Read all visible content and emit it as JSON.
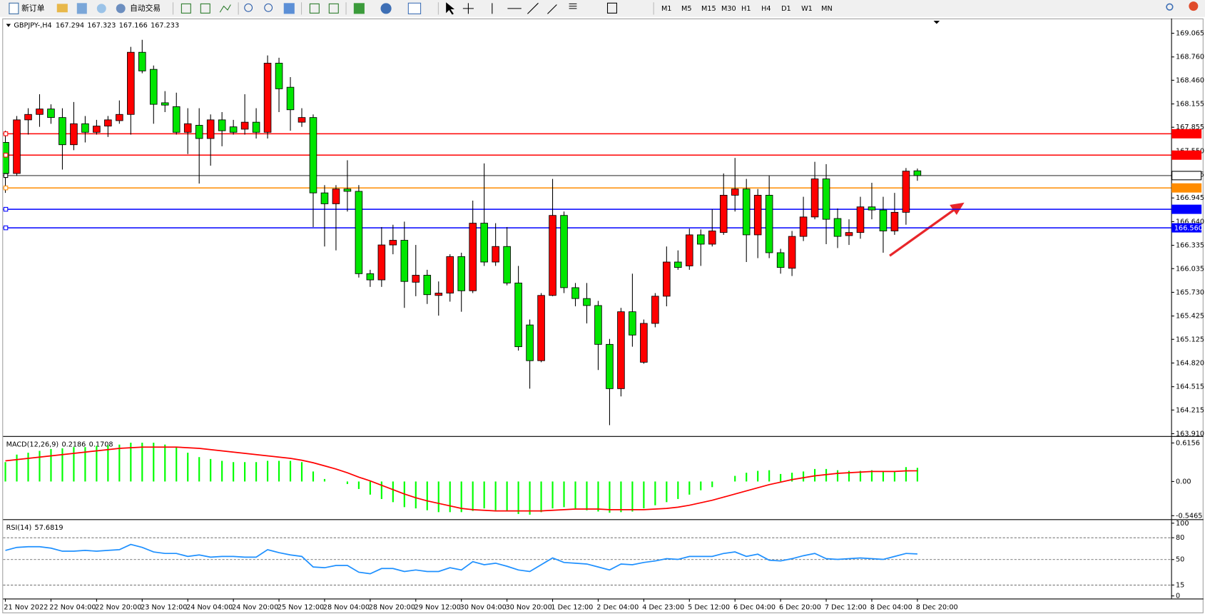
{
  "toolbar": {
    "new_order": "新订单",
    "auto_trading": "自动交易",
    "timeframes": [
      "M1",
      "M5",
      "M15",
      "M30",
      "H1",
      "H4",
      "D1",
      "W1",
      "MN"
    ]
  },
  "chart_data": [
    {
      "type": "candlestick",
      "symbol": "GBPJPY-,H4",
      "categories": [
        "21 Nov 2022",
        null,
        null,
        null,
        "22 Nov 04:00",
        null,
        null,
        null,
        "22 Nov 20:00",
        null,
        null,
        null,
        "23 Nov 12:00",
        null,
        null,
        null,
        "24 Nov 04:00",
        null,
        null,
        null,
        "24 Nov 20:00",
        null,
        null,
        null,
        "25 Nov 12:00",
        null,
        null,
        null,
        "28 Nov 04:00",
        null,
        null,
        null,
        "28 Nov 20:00",
        null,
        null,
        null,
        "29 Nov 12:00",
        null,
        null,
        null,
        "30 Nov 04:00",
        null,
        null,
        null,
        "30 Nov 20:00",
        null,
        null,
        null,
        "1 Dec 12:00",
        null,
        null,
        null,
        "2 Dec 04:00",
        null,
        null,
        null,
        "4 Dec 23:00",
        null,
        null,
        null,
        "5 Dec 12:00",
        null,
        null,
        null,
        "6 Dec 04:00",
        null,
        null,
        null,
        "6 Dec 20:00",
        null,
        null,
        null,
        "7 Dec 12:00",
        null,
        null,
        null,
        "8 Dec 04:00",
        null,
        null,
        null,
        "8 Dec 20:00"
      ],
      "open": [
        167.66,
        167.26,
        167.95,
        168.02,
        168.09,
        167.98,
        167.63,
        167.9,
        167.79,
        167.87,
        167.94,
        168.02,
        168.82,
        168.6,
        168.17,
        168.12,
        167.79,
        167.88,
        167.71,
        167.95,
        167.86,
        167.83,
        167.92,
        167.79,
        168.68,
        168.37,
        167.92,
        167.98,
        167.01,
        166.87,
        167.06,
        167.03,
        165.97,
        165.89,
        166.34,
        166.4,
        165.86,
        165.95,
        165.69,
        165.72,
        166.19,
        165.75,
        166.62,
        166.12,
        166.32,
        165.85,
        165.31,
        164.85,
        165.69,
        166.72,
        165.79,
        165.65,
        165.56,
        165.06,
        164.49,
        165.48,
        164.83,
        165.33,
        165.68,
        166.12,
        166.07,
        166.47,
        166.35,
        166.5,
        166.98,
        167.06,
        166.47,
        166.98,
        166.24,
        166.04,
        166.45,
        166.7,
        167.19,
        166.68,
        166.46,
        166.5,
        166.83,
        166.79,
        166.52,
        166.76,
        167.294
      ],
      "high": [
        167.81,
        168.0,
        168.1,
        168.28,
        168.15,
        168.1,
        168.18,
        168.0,
        167.95,
        168.0,
        168.2,
        168.89,
        168.98,
        168.65,
        168.32,
        168.3,
        168.1,
        168.1,
        168.02,
        168.05,
        167.95,
        168.28,
        168.1,
        168.78,
        168.75,
        168.5,
        168.1,
        168.02,
        167.11,
        167.11,
        167.43,
        167.11,
        166.02,
        166.57,
        166.6,
        166.64,
        166.34,
        166.02,
        165.87,
        166.22,
        166.24,
        166.91,
        167.39,
        166.62,
        166.57,
        166.07,
        165.38,
        165.72,
        167.19,
        166.77,
        165.85,
        165.85,
        165.62,
        165.13,
        165.53,
        165.97,
        165.38,
        165.72,
        166.32,
        166.27,
        166.55,
        166.54,
        166.8,
        167.26,
        167.46,
        167.19,
        167.06,
        167.23,
        166.29,
        166.52,
        166.96,
        167.41,
        167.38,
        166.81,
        166.67,
        166.96,
        167.14,
        166.96,
        167.01,
        167.33,
        167.323
      ],
      "low": [
        167.01,
        167.23,
        167.76,
        167.86,
        167.9,
        167.31,
        167.56,
        167.66,
        167.76,
        167.73,
        167.9,
        167.76,
        168.55,
        167.9,
        168.05,
        167.76,
        167.51,
        167.13,
        167.36,
        167.61,
        167.76,
        167.76,
        167.71,
        167.71,
        168.05,
        167.81,
        167.86,
        166.57,
        166.32,
        166.27,
        166.77,
        165.92,
        165.8,
        165.8,
        166.22,
        165.53,
        165.68,
        165.58,
        165.43,
        165.61,
        165.48,
        165.72,
        166.07,
        166.07,
        165.82,
        164.98,
        164.49,
        164.83,
        165.68,
        165.72,
        165.55,
        165.33,
        164.73,
        164.02,
        164.39,
        165.03,
        164.81,
        165.28,
        165.55,
        166.02,
        166.02,
        166.07,
        166.32,
        166.47,
        166.77,
        166.12,
        166.17,
        166.17,
        165.97,
        165.94,
        166.39,
        166.67,
        166.35,
        166.3,
        166.34,
        166.42,
        166.67,
        166.24,
        166.47,
        166.6,
        167.166
      ],
      "close": [
        167.26,
        167.95,
        168.02,
        168.09,
        167.98,
        167.63,
        167.9,
        167.79,
        167.87,
        167.95,
        168.02,
        168.82,
        168.58,
        168.15,
        168.14,
        167.79,
        167.9,
        167.71,
        167.95,
        167.81,
        167.79,
        167.92,
        167.79,
        168.68,
        168.35,
        168.08,
        167.98,
        167.01,
        166.87,
        167.06,
        167.03,
        165.97,
        165.89,
        166.34,
        166.4,
        165.87,
        165.95,
        165.7,
        165.72,
        166.19,
        165.75,
        166.62,
        166.12,
        166.32,
        165.85,
        165.03,
        164.85,
        165.69,
        166.72,
        165.79,
        165.65,
        165.56,
        165.06,
        164.49,
        165.48,
        165.18,
        165.33,
        165.68,
        166.12,
        166.05,
        166.47,
        166.35,
        166.52,
        166.98,
        167.06,
        166.47,
        166.98,
        166.24,
        166.05,
        166.45,
        166.7,
        167.19,
        166.67,
        166.45,
        166.5,
        166.83,
        166.79,
        166.52,
        166.76,
        167.29,
        167.233
      ],
      "up_color": "#ff0000",
      "down_color": "#00e600",
      "ylim": [
        163.88,
        169.245
      ],
      "yticks": [
        169.065,
        {
          "value": 168.76,
          "label": "168.760"
        },
        {
          "value": 168.46,
          "label": "168.460"
        },
        168.155,
        167.855,
        {
          "value": 167.55,
          "label": "167.550"
        },
        167.245,
        166.945,
        {
          "value": 166.64,
          "label": "166.640"
        },
        166.335,
        166.035,
        {
          "value": 165.73,
          "label": "165.730"
        },
        165.425,
        165.125,
        {
          "value": 164.82,
          "label": "164.820"
        },
        164.515,
        164.215,
        {
          "value": 163.91,
          "label": "163.910"
        }
      ],
      "hlines": [
        {
          "value": 167.771,
          "color": "#ff0000"
        },
        {
          "value": 167.496,
          "color": "#ff0000"
        },
        {
          "value": 167.233,
          "color": "#000000"
        },
        {
          "value": 167.074,
          "color": "#ff8c00"
        },
        {
          "value": 166.799,
          "color": "#0000ff"
        },
        {
          "value": 166.56,
          "label": "166.560",
          "color": "#0000ff"
        }
      ]
    },
    {
      "type": "macd",
      "title": "MACD(12,26,9)",
      "series": [
        {
          "kind": "bar",
          "color": "#00ff00",
          "values": [
            0.31,
            0.43,
            0.46,
            0.49,
            0.52,
            0.53,
            0.55,
            0.55,
            0.57,
            0.58,
            0.59,
            0.62,
            0.62,
            0.62,
            0.59,
            0.55,
            0.46,
            0.39,
            0.36,
            0.33,
            0.31,
            0.31,
            0.31,
            0.33,
            0.33,
            0.33,
            0.31,
            0.16,
            0.04,
            0,
            -0.04,
            -0.12,
            -0.21,
            -0.28,
            -0.33,
            -0.41,
            -0.43,
            -0.46,
            -0.49,
            -0.49,
            -0.49,
            -0.47,
            -0.43,
            -0.46,
            -0.47,
            -0.52,
            -0.53,
            -0.49,
            -0.43,
            -0.41,
            -0.43,
            -0.46,
            -0.48,
            -0.5,
            -0.49,
            -0.48,
            -0.43,
            -0.38,
            -0.33,
            -0.28,
            -0.21,
            -0.14,
            -0.09,
            0,
            0.09,
            0.14,
            0.17,
            0.18,
            0.12,
            0.14,
            0.16,
            0.2,
            0.2,
            0.18,
            0.17,
            0.17,
            0.18,
            0.16,
            0.17,
            0.23,
            0.2186
          ]
        },
        {
          "kind": "line",
          "color": "#ff0000",
          "values": [
            0.33,
            0.35,
            0.37,
            0.39,
            0.41,
            0.43,
            0.45,
            0.47,
            0.49,
            0.51,
            0.53,
            0.54,
            0.55,
            0.55,
            0.55,
            0.55,
            0.54,
            0.53,
            0.51,
            0.49,
            0.47,
            0.45,
            0.43,
            0.41,
            0.39,
            0.37,
            0.34,
            0.3,
            0.25,
            0.2,
            0.14,
            0.07,
            0.01,
            -0.06,
            -0.13,
            -0.2,
            -0.26,
            -0.31,
            -0.35,
            -0.39,
            -0.43,
            -0.45,
            -0.46,
            -0.47,
            -0.47,
            -0.47,
            -0.47,
            -0.47,
            -0.46,
            -0.45,
            -0.44,
            -0.44,
            -0.44,
            -0.45,
            -0.45,
            -0.45,
            -0.45,
            -0.44,
            -0.43,
            -0.41,
            -0.38,
            -0.34,
            -0.3,
            -0.25,
            -0.2,
            -0.15,
            -0.1,
            -0.05,
            -0.01,
            0.03,
            0.06,
            0.09,
            0.11,
            0.13,
            0.14,
            0.15,
            0.16,
            0.16,
            0.16,
            0.17,
            0.1708
          ]
        }
      ],
      "ylim": [
        -0.591,
        0.702
      ],
      "yticks": [
        0.6156,
        {
          "value": 0,
          "label": "0.00"
        },
        -0.5465
      ]
    },
    {
      "type": "line",
      "title": "RSI(14)",
      "color": "#1e90ff",
      "values": [
        62.6,
        66.7,
        67.7,
        67.7,
        65.7,
        61.5,
        61.5,
        62.6,
        61.5,
        62.6,
        63.6,
        70.8,
        66.7,
        60.5,
        58.4,
        58.4,
        54.3,
        56.4,
        53.3,
        54.3,
        54.3,
        53.3,
        53.3,
        63.6,
        59.5,
        56.4,
        54.3,
        39.8,
        38.8,
        41.9,
        41.9,
        32.6,
        30.5,
        37.7,
        37.7,
        33.6,
        35.7,
        33.6,
        33.6,
        38.8,
        35.7,
        47.1,
        42.9,
        45.0,
        40.8,
        35.7,
        33.6,
        42.9,
        52.2,
        46.0,
        45.0,
        43.9,
        39.8,
        35.7,
        43.9,
        42.9,
        46.0,
        48.1,
        51.2,
        50.2,
        54.3,
        54.3,
        54.3,
        58.4,
        60.5,
        54.3,
        57.4,
        49.1,
        48.1,
        51.2,
        55.3,
        58.4,
        51.2,
        50.2,
        51.2,
        52.2,
        51.2,
        50.2,
        54.3,
        58.4,
        57.6819
      ],
      "ylim": [
        -2.6,
        103.3
      ],
      "yticks": [
        100,
        80,
        50,
        15,
        0
      ],
      "levels": [
        80,
        50,
        15
      ]
    }
  ]
}
